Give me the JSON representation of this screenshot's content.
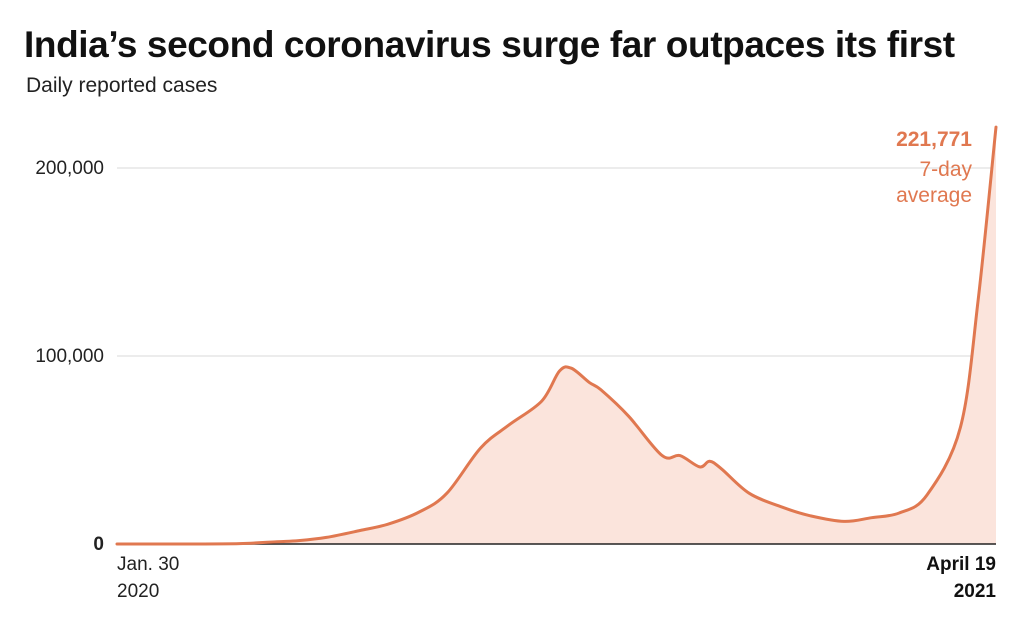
{
  "chart_data": {
    "type": "area",
    "title": "India’s second coronavirus surge far outpaces its first",
    "subtitle": "Daily reported cases",
    "xlabel": "",
    "ylabel": "",
    "ylim": [
      0,
      220000
    ],
    "yticks": [
      {
        "value": 0,
        "label": "0"
      },
      {
        "value": 100000,
        "label": "100,000"
      },
      {
        "value": 200000,
        "label": "200,000"
      }
    ],
    "xlim": [
      "2020-01-30",
      "2021-04-19"
    ],
    "xticks": [
      {
        "date": "2020-01-30",
        "line1": "Jan. 30",
        "line2": "2020"
      },
      {
        "date": "2021-04-19",
        "line1": "April 19",
        "line2": "2021"
      }
    ],
    "grid": true,
    "colors": {
      "line": "#e07850",
      "fill": "#fbe4dc",
      "annotation": "#e07850",
      "grid": "#d8d8d8",
      "axis": "#222222"
    },
    "annotation": {
      "value_label": "221,771",
      "text_line1": "7-day",
      "text_line2": "average"
    },
    "series": [
      {
        "name": "7-day average",
        "points": [
          {
            "x": "2020-01-30",
            "y": 0
          },
          {
            "x": "2020-03-01",
            "y": 0
          },
          {
            "x": "2020-04-01",
            "y": 200
          },
          {
            "x": "2020-04-20",
            "y": 1200
          },
          {
            "x": "2020-05-01",
            "y": 1800
          },
          {
            "x": "2020-05-15",
            "y": 3500
          },
          {
            "x": "2020-06-01",
            "y": 7200
          },
          {
            "x": "2020-06-15",
            "y": 10500
          },
          {
            "x": "2020-07-01",
            "y": 17000
          },
          {
            "x": "2020-07-15",
            "y": 27000
          },
          {
            "x": "2020-08-01",
            "y": 51000
          },
          {
            "x": "2020-08-15",
            "y": 63000
          },
          {
            "x": "2020-09-01",
            "y": 76000
          },
          {
            "x": "2020-09-10",
            "y": 92000
          },
          {
            "x": "2020-09-16",
            "y": 93500
          },
          {
            "x": "2020-09-25",
            "y": 86000
          },
          {
            "x": "2020-10-01",
            "y": 82000
          },
          {
            "x": "2020-10-15",
            "y": 68000
          },
          {
            "x": "2020-11-01",
            "y": 47000
          },
          {
            "x": "2020-11-10",
            "y": 47000
          },
          {
            "x": "2020-11-20",
            "y": 41000
          },
          {
            "x": "2020-11-25",
            "y": 44000
          },
          {
            "x": "2020-12-01",
            "y": 40000
          },
          {
            "x": "2020-12-15",
            "y": 27000
          },
          {
            "x": "2021-01-01",
            "y": 19500
          },
          {
            "x": "2021-01-15",
            "y": 15000
          },
          {
            "x": "2021-02-01",
            "y": 12000
          },
          {
            "x": "2021-02-15",
            "y": 14000
          },
          {
            "x": "2021-03-01",
            "y": 16500
          },
          {
            "x": "2021-03-15",
            "y": 26000
          },
          {
            "x": "2021-04-01",
            "y": 62000
          },
          {
            "x": "2021-04-10",
            "y": 130000
          },
          {
            "x": "2021-04-19",
            "y": 221771
          }
        ]
      }
    ]
  }
}
